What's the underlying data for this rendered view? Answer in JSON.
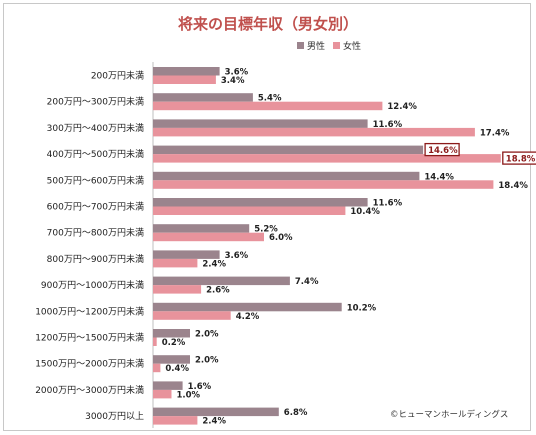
{
  "chart_data": {
    "type": "bar",
    "orientation": "horizontal",
    "title": "将来の目標年収（男女別）",
    "legend_position": "top-right",
    "grid": false,
    "categories": [
      "200万円未満",
      "200万円～300万円未満",
      "300万円～400万円未満",
      "400万円～500万円未満",
      "500万円～600万円未満",
      "600万円～700万円未満",
      "700万円～800万円未満",
      "800万円～900万円未満",
      "900万円～1000万円未満",
      "1000万円～1200万円未満",
      "1200万円～1500万円未満",
      "1500万円～2000万円未満",
      "2000万円～3000万円未満",
      "3000万円以上"
    ],
    "series": [
      {
        "name": "男性",
        "color": "#9b848d",
        "values": [
          3.6,
          5.4,
          11.6,
          14.6,
          14.4,
          11.6,
          5.2,
          3.6,
          7.4,
          10.2,
          2.0,
          2.0,
          1.6,
          6.8
        ],
        "labels": [
          "3.6%",
          "5.4%",
          "11.6%",
          "14.6%",
          "14.4%",
          "11.6%",
          "5.2%",
          "3.6%",
          "7.4%",
          "10.2%",
          "2.0%",
          "2.0%",
          "1.6%",
          "6.8%"
        ]
      },
      {
        "name": "女性",
        "color": "#e8939c",
        "values": [
          3.4,
          12.4,
          17.4,
          18.8,
          18.4,
          10.4,
          6.0,
          2.4,
          2.6,
          4.2,
          0.2,
          0.4,
          1.0,
          2.4
        ],
        "labels": [
          "3.4%",
          "12.4%",
          "17.4%",
          "18.8%",
          "18.4%",
          "10.4%",
          "6.0%",
          "2.4%",
          "2.6%",
          "4.2%",
          "0.2%",
          "0.4%",
          "1.0%",
          "2.4%"
        ]
      }
    ],
    "highlight_index": 3,
    "highlight_color": "#8b1a1a",
    "title_color": "#c0504d",
    "xlim": [
      0,
      20
    ]
  },
  "credit": "©ヒューマンホールディングス"
}
